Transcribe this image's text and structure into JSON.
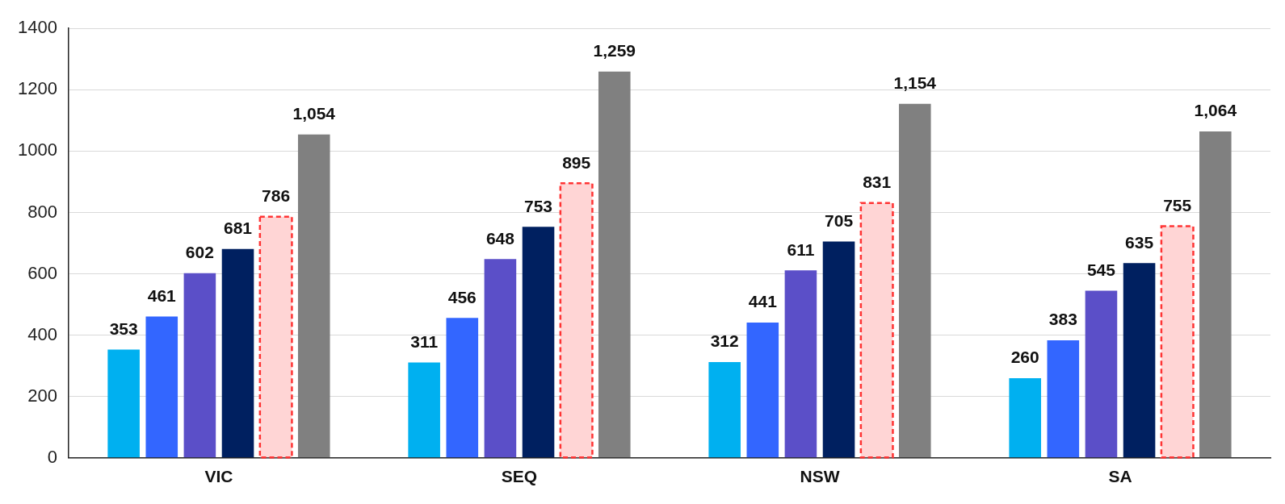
{
  "chart_data": {
    "type": "bar",
    "categories": [
      "VIC",
      "SEQ",
      "NSW",
      "SA"
    ],
    "series": [
      {
        "color": "#00b0f0",
        "values": [
          353,
          311,
          312,
          260
        ],
        "value_labels": [
          "353",
          "311",
          "312",
          "260"
        ]
      },
      {
        "color": "#3366ff",
        "values": [
          461,
          456,
          441,
          383
        ],
        "value_labels": [
          "461",
          "456",
          "441",
          "383"
        ]
      },
      {
        "color": "#5b4fc8",
        "values": [
          602,
          648,
          611,
          545
        ],
        "value_labels": [
          "602",
          "648",
          "611",
          "545"
        ]
      },
      {
        "color": "#002060",
        "values": [
          681,
          753,
          705,
          635
        ],
        "value_labels": [
          "681",
          "753",
          "705",
          "635"
        ]
      },
      {
        "color": "#ffd5d5",
        "line_style": "dashed",
        "values": [
          786,
          895,
          831,
          755
        ],
        "value_labels": [
          "786",
          "895",
          "831",
          "755"
        ]
      },
      {
        "color": "#808080",
        "values": [
          1054,
          1259,
          1154,
          1064
        ],
        "value_labels": [
          "1,054",
          "1,259",
          "1,154",
          "1,064"
        ]
      }
    ],
    "ylim": [
      0,
      1400
    ],
    "yticks": [
      0,
      200,
      400,
      600,
      800,
      1000,
      1200,
      1400
    ],
    "grid": "y",
    "legend": false
  }
}
